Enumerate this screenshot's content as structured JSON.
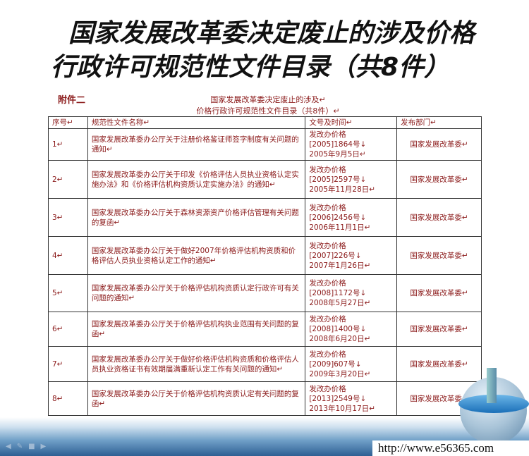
{
  "slide": {
    "title_line1": "国家发展改革委决定废止的涉及价格",
    "title_line2": "行政许可规范性文件目录（共8件）"
  },
  "document": {
    "annex": "附件二",
    "title_line1": "国家发展改革委决定废止的涉及↵",
    "title_line2": "价格行政许可规范性文件目录（共8件）↵",
    "headers": [
      "序号↵",
      "规范性文件名称↵",
      "文号及时间↵",
      "发布部门↵"
    ],
    "rows": [
      {
        "no": "1↵",
        "name": "国家发展改革委办公厅关于注册价格鉴证师签字制度有关问题的通知↵",
        "doc": "发改办价格",
        "num": "[2005]1864号↓",
        "date": "2005年9月5日↵",
        "dept": "国家发展改革委↵"
      },
      {
        "no": "2↵",
        "name": "国家发展改革委办公厅关于印发《价格评估人员执业资格认定实施办法》和《价格评估机构资质认定实施办法》的通知↵",
        "doc": "发改办价格",
        "num": "[2005]2597号↓",
        "date": "2005年11月28日↵",
        "dept": "国家发展改革委↵"
      },
      {
        "no": "3↵",
        "name": "国家发展改革委办公厅关于森林资源资产价格评估管理有关问题的复函↵",
        "doc": "发改办价格",
        "num": "[2006]2456号↓",
        "date": "2006年11月1日↵",
        "dept": "国家发展改革委↵"
      },
      {
        "no": "4↵",
        "name": "国家发展改革委办公厅关于做好2007年价格评估机构资质和价格评估人员执业资格认定工作的通知↵",
        "doc": "发改办价格",
        "num": "[2007]226号↓",
        "date": "2007年1月26日↵",
        "dept": "国家发展改革委↵"
      },
      {
        "no": "5↵",
        "name": "国家发展改革委办公厅关于价格评估机构资质认定行政许可有关问题的通知↵",
        "doc": "发改办价格",
        "num": "[2008]1172号↓",
        "date": "2008年5月27日↵",
        "dept": "国家发展改革委↵"
      },
      {
        "no": "6↵",
        "name": "国家发展改革委办公厅关于价格评估机构执业范围有关问题的复函↵",
        "doc": "发改办价格",
        "num": "[2008]1400号↓",
        "date": "2008年6月20日↵",
        "dept": "国家发展改革委↵"
      },
      {
        "no": "7↵",
        "name": "国家发展改革委办公厅关于做好价格评估机构资质和价格评估人员执业资格证书有效期届满重新认定工作有关问题的通知↵",
        "doc": "发改办价格",
        "num": "[2009]607号↓",
        "date": "2009年3月20日↵",
        "dept": "国家发展改革委↵"
      },
      {
        "no": "8↵",
        "name": "国家发展改革委办公厅关于价格评估机构资质认定有关问题的复函↵",
        "doc": "发改办价格",
        "num": "[2013]2549号↓",
        "date": "2013年10月17日↵",
        "dept": "国家发展改革委↵"
      }
    ]
  },
  "watermark": {
    "url": "http://www.e56365.com"
  }
}
